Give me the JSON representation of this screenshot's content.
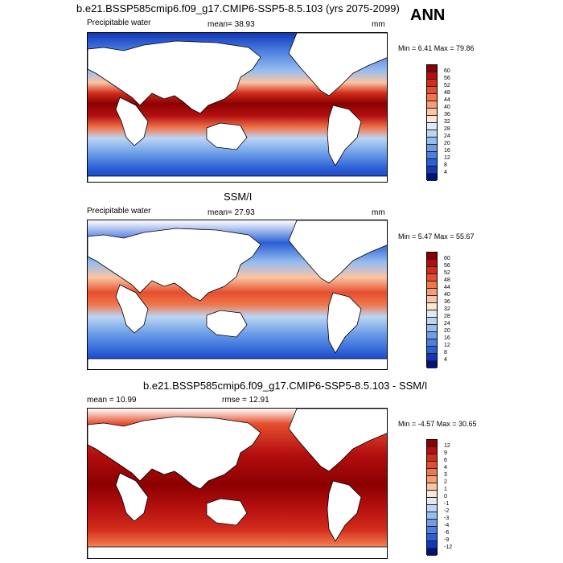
{
  "chart_data": [
    {
      "type": "heatmap",
      "title": "b.e21.BSSP585cmip6.f09_g17.CMIP6-SSP5-8.5.103 (yrs 2075-2099)",
      "left_label": "Precipitable water",
      "mean_text": "mean=  38.93",
      "units": "mm",
      "minmax_text": "Min =   6.41 Max =  79.86",
      "colorbar_levels": [
        "60",
        "56",
        "52",
        "48",
        "44",
        "40",
        "36",
        "32",
        "28",
        "24",
        "20",
        "16",
        "12",
        "8",
        "4"
      ],
      "colorbar_colors": [
        "#8b0000",
        "#b40f0f",
        "#d22c1c",
        "#e54f2e",
        "#f0764d",
        "#f79d76",
        "#fbc4a3",
        "#fde6d3",
        "#dfeaf7",
        "#bcd5f3",
        "#96bdef",
        "#6d9fe8",
        "#4a7fe0",
        "#2b5fd6",
        "#1238b8",
        "#00137d"
      ]
    },
    {
      "type": "heatmap",
      "title": "SSM/I",
      "left_label": "Precipitable water",
      "mean_text": "mean=  27.93",
      "units": "mm",
      "minmax_text": "Min =   5.47 Max =  55.67",
      "colorbar_levels": [
        "60",
        "56",
        "52",
        "48",
        "44",
        "40",
        "36",
        "32",
        "28",
        "24",
        "20",
        "16",
        "12",
        "8",
        "4"
      ],
      "colorbar_colors": [
        "#8b0000",
        "#b40f0f",
        "#d22c1c",
        "#e54f2e",
        "#f0764d",
        "#f79d76",
        "#fbc4a3",
        "#fde6d3",
        "#dfeaf7",
        "#bcd5f3",
        "#96bdef",
        "#6d9fe8",
        "#4a7fe0",
        "#2b5fd6",
        "#1238b8",
        "#00137d"
      ]
    },
    {
      "type": "heatmap",
      "title": "b.e21.BSSP585cmip6.f09_g17.CMIP6-SSP5-8.5.103 - SSM/I",
      "mean_text": "mean =  10.99",
      "rmse_text": "rmse =  12.91",
      "minmax_text": "Min =  -4.57 Max =  30.65",
      "colorbar_levels": [
        "12",
        "9",
        "6",
        "4",
        "3",
        "2",
        "1",
        "0",
        "-1",
        "-2",
        "-3",
        "-4",
        "-6",
        "-9",
        "-12"
      ],
      "colorbar_colors": [
        "#8b0000",
        "#b40f0f",
        "#d22c1c",
        "#e54f2e",
        "#f0764d",
        "#f79d76",
        "#fbc4a3",
        "#fde6d3",
        "#dfeaf7",
        "#bcd5f3",
        "#96bdef",
        "#6d9fe8",
        "#4a7fe0",
        "#2b5fd6",
        "#1238b8",
        "#00137d"
      ]
    }
  ],
  "season": "ANN"
}
